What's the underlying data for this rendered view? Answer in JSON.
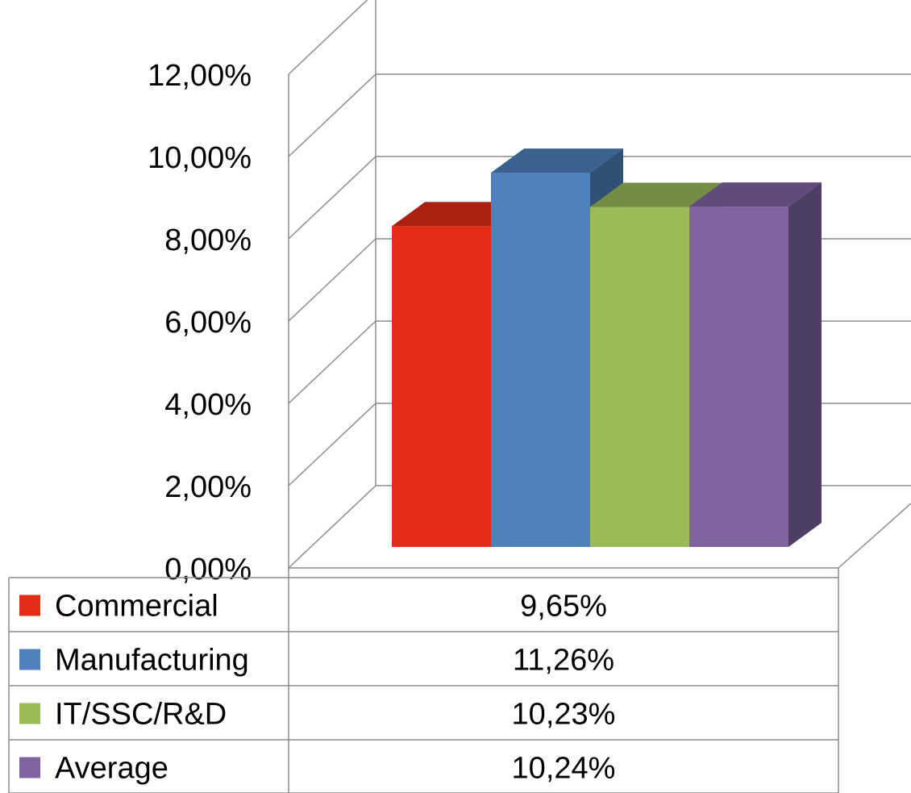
{
  "chart_data": {
    "type": "bar",
    "categories": [
      "Commercial",
      "Manufacturing",
      "IT/SSC/R&D",
      "Average"
    ],
    "values": [
      9.65,
      11.26,
      10.23,
      10.24
    ],
    "value_labels": [
      "9,65%",
      "11,26%",
      "10,23%",
      "10,24%"
    ],
    "colors": [
      "#e32b17",
      "#4f81bd",
      "#9bbb59",
      "#8064a2"
    ],
    "ylim": [
      0,
      12
    ],
    "yticks": [
      0,
      2,
      4,
      6,
      8,
      10,
      12
    ],
    "ytick_labels": [
      "0,00%",
      "2,00%",
      "4,00%",
      "6,00%",
      "8,00%",
      "10,00%",
      "12,00%"
    ],
    "grid": true,
    "legend": "data-table-below",
    "style": "3d-clustered-column"
  }
}
